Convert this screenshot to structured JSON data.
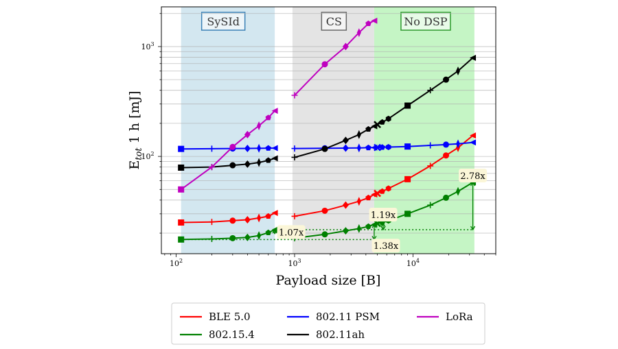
{
  "chart_data": {
    "type": "line",
    "xscale": "log",
    "yscale": "log",
    "xlabel": "Payload size [B]",
    "ylabel": "E_tot 1 h [mJ]",
    "xlim": [
      75,
      50000
    ],
    "ylim": [
      13,
      2300
    ],
    "x_ticks": [
      {
        "value": 100,
        "base": "10",
        "exp": "2"
      },
      {
        "value": 1000,
        "base": "10",
        "exp": "3"
      },
      {
        "value": 10000,
        "base": "10",
        "exp": "4"
      }
    ],
    "y_ticks": [
      {
        "value": 100,
        "base": "10",
        "exp": "2"
      },
      {
        "value": 1000,
        "base": "10",
        "exp": "3"
      }
    ],
    "regions": [
      {
        "label": "SySId",
        "x0": 110,
        "x1": 680,
        "fill": "#d3e7f0",
        "text_color": "#3a80b5",
        "label_x": 250
      },
      {
        "label": "CS",
        "x0": 960,
        "x1": 4700,
        "fill": "#e4e4e4",
        "text_color": "#666666",
        "label_x": 2150
      },
      {
        "label": "No DSP",
        "x0": 4700,
        "x1": 33000,
        "fill": "#c5f5c5",
        "text_color": "#2d9a2d",
        "label_x": 12800
      }
    ],
    "series": [
      {
        "name": "BLE 5.0",
        "color": "#ff0000",
        "segments": [
          [
            [
              110,
              25
            ],
            [
              200,
              25.3
            ],
            [
              300,
              26
            ],
            [
              400,
              26.5
            ],
            [
              500,
              27.5
            ],
            [
              600,
              28.5
            ],
            [
              680,
              30.5
            ]
          ],
          [
            [
              1000,
              28.5
            ],
            [
              1800,
              32
            ],
            [
              2700,
              36
            ],
            [
              3500,
              39
            ],
            [
              4200,
              42
            ],
            [
              4700,
              45
            ],
            [
              5000,
              46
            ],
            [
              5500,
              48
            ],
            [
              6200,
              51
            ],
            [
              9000,
              62
            ],
            [
              14000,
              82
            ],
            [
              19000,
              102
            ],
            [
              24000,
              120
            ],
            [
              32000,
              155
            ]
          ]
        ]
      },
      {
        "name": "802.15.4",
        "color": "#008000",
        "segments": [
          [
            [
              110,
              17.5
            ],
            [
              200,
              17.7
            ],
            [
              300,
              18
            ],
            [
              400,
              18.3
            ],
            [
              500,
              19
            ],
            [
              600,
              20.2
            ],
            [
              680,
              21.5
            ]
          ],
          [
            [
              1000,
              18
            ],
            [
              1800,
              19.5
            ],
            [
              2700,
              21
            ],
            [
              3500,
              22
            ],
            [
              4200,
              23
            ],
            [
              4700,
              24
            ],
            [
              5000,
              24.5
            ],
            [
              5500,
              25
            ],
            [
              6200,
              26
            ],
            [
              9000,
              30
            ],
            [
              14000,
              36
            ],
            [
              19000,
              42
            ],
            [
              24000,
              48
            ],
            [
              32000,
              58
            ]
          ]
        ]
      },
      {
        "name": "802.11 PSM",
        "color": "#0000ff",
        "segments": [
          [
            [
              110,
              117
            ],
            [
              200,
              117.5
            ],
            [
              300,
              118
            ],
            [
              400,
              118.2
            ],
            [
              500,
              118.5
            ],
            [
              600,
              118.8
            ],
            [
              680,
              119
            ]
          ],
          [
            [
              1000,
              118
            ],
            [
              1800,
              118.5
            ],
            [
              2700,
              119
            ],
            [
              3500,
              119.5
            ],
            [
              4200,
              120
            ],
            [
              4700,
              120.3
            ],
            [
              5000,
              120.5
            ],
            [
              5500,
              121
            ],
            [
              6200,
              121.5
            ],
            [
              9000,
              123
            ],
            [
              14000,
              126
            ],
            [
              19000,
              128
            ],
            [
              24000,
              130
            ],
            [
              32000,
              134
            ]
          ]
        ]
      },
      {
        "name": "802.11ah",
        "color": "#000000",
        "segments": [
          [
            [
              110,
              79
            ],
            [
              200,
              80
            ],
            [
              300,
              83
            ],
            [
              400,
              85
            ],
            [
              500,
              88
            ],
            [
              600,
              92
            ],
            [
              680,
              96
            ]
          ],
          [
            [
              1000,
              98
            ],
            [
              1800,
              117
            ],
            [
              2700,
              140
            ],
            [
              3500,
              158
            ],
            [
              4200,
              177
            ],
            [
              4700,
              188
            ],
            [
              5000,
              195
            ],
            [
              5500,
              205
            ],
            [
              6200,
              220
            ],
            [
              9000,
              290
            ],
            [
              14000,
              400
            ],
            [
              19000,
              500
            ],
            [
              24000,
              600
            ],
            [
              32000,
              790
            ]
          ]
        ]
      },
      {
        "name": "LoRa",
        "color": "#bf00bf",
        "segments": [
          [
            [
              110,
              50
            ],
            [
              200,
              80
            ],
            [
              300,
              122
            ],
            [
              400,
              158
            ],
            [
              500,
              190
            ],
            [
              600,
              225
            ],
            [
              680,
              260
            ]
          ],
          [
            [
              1000,
              360
            ],
            [
              1800,
              690
            ],
            [
              2700,
              1000
            ],
            [
              3500,
              1340
            ],
            [
              4200,
              1620
            ],
            [
              4700,
              1720
            ]
          ]
        ]
      }
    ],
    "annotations": [
      {
        "text": "1.07x"
      },
      {
        "text": "1.19x"
      },
      {
        "text": "1.38x"
      },
      {
        "text": "2.78x"
      }
    ],
    "legend": {
      "position": "bottom-center",
      "entries": [
        "BLE 5.0",
        "802.11 PSM",
        "LoRa",
        "802.15.4",
        "802.11ah"
      ]
    }
  }
}
